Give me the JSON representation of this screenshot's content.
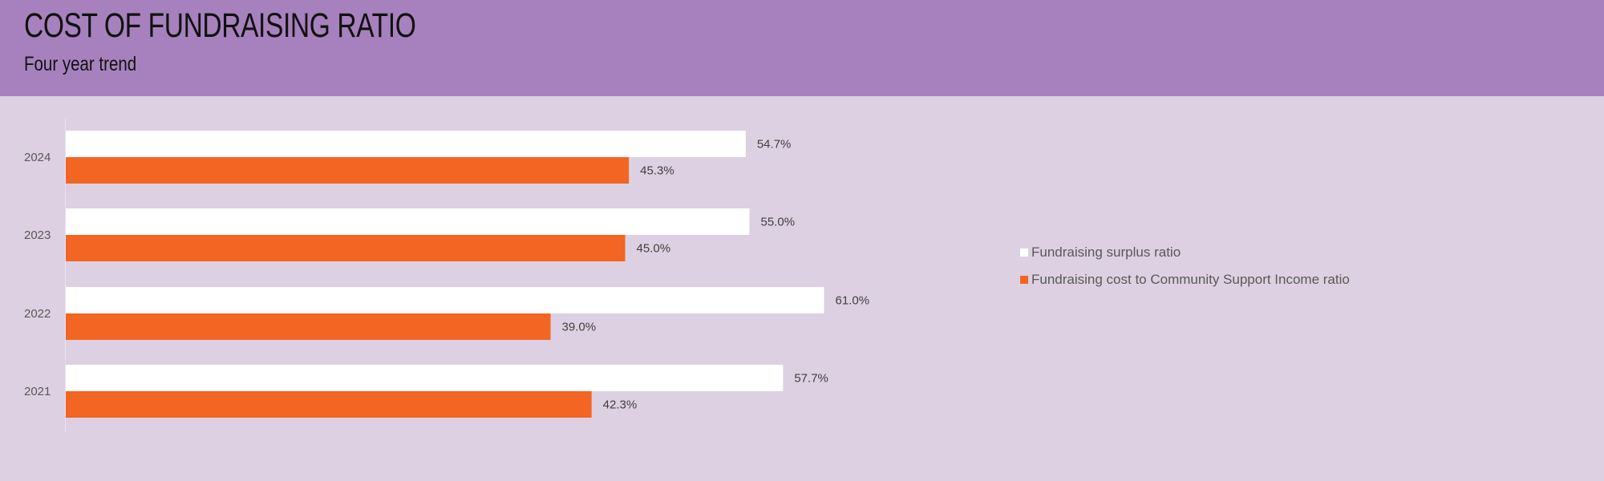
{
  "header": {
    "title": "COST OF FUNDRAISING RATIO",
    "subtitle": "Four year trend"
  },
  "colors": {
    "header_bg": "#a781bd",
    "page_bg": "#ddd0e2",
    "surplus": "#ffffff",
    "cost": "#f26522"
  },
  "chart_data": {
    "type": "bar",
    "orientation": "horizontal",
    "categories": [
      "2024",
      "2023",
      "2022",
      "2021"
    ],
    "series": [
      {
        "name": "Fundraising surplus ratio",
        "values": [
          54.7,
          55.0,
          61.0,
          57.7
        ],
        "labels": [
          "54.7%",
          "55.0%",
          "61.0%",
          "57.7%"
        ]
      },
      {
        "name": "Fundraising cost to Community Support Income ratio",
        "values": [
          45.3,
          45.0,
          39.0,
          42.3
        ],
        "labels": [
          "45.3%",
          "45.0%",
          "39.0%",
          "42.3%"
        ]
      }
    ],
    "xlim": [
      0,
      100
    ],
    "grid": false,
    "legend_position": "right",
    "title": "",
    "xlabel": "",
    "ylabel": ""
  }
}
